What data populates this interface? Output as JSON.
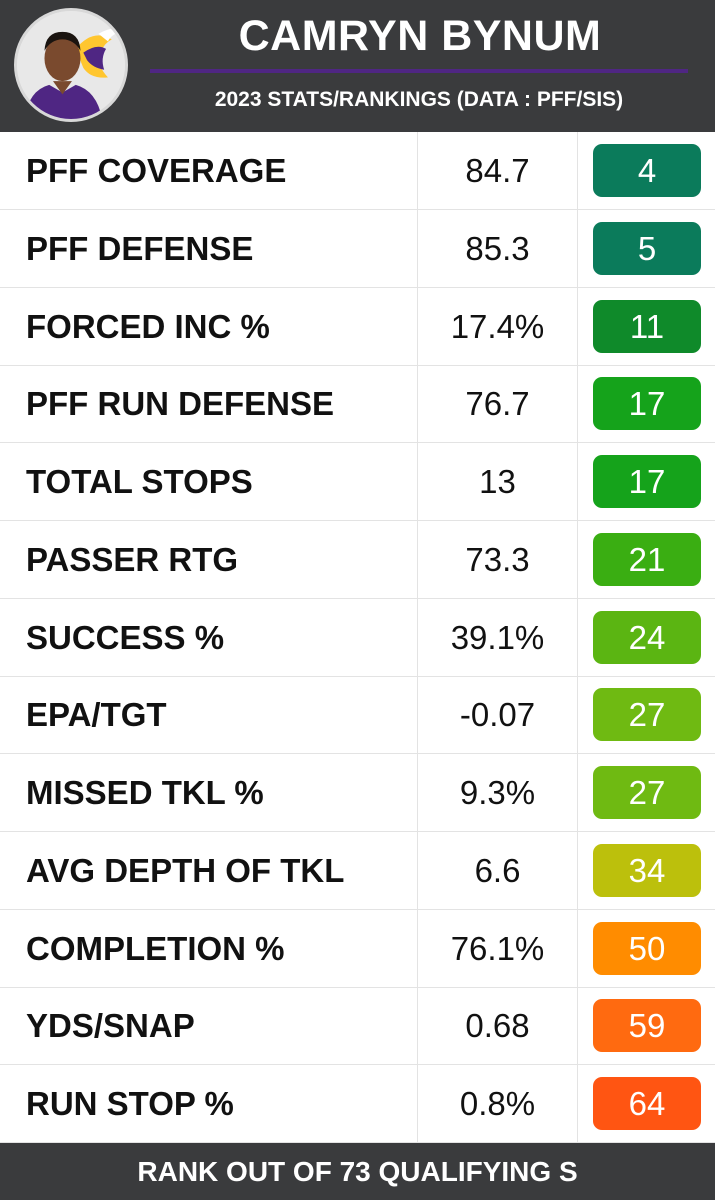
{
  "header": {
    "player_name": "CAMRYN BYNUM",
    "subtitle": "2023 STATS/RANKINGS (DATA : PFF/SIS)",
    "avatar_icon": "player-headshot-icon",
    "team_logo_icon": "viking-logo-icon"
  },
  "rows": [
    {
      "stat": "PFF COVERAGE",
      "value": "84.7",
      "rank": "4",
      "color": "#0b7b5b"
    },
    {
      "stat": "PFF DEFENSE",
      "value": "85.3",
      "rank": "5",
      "color": "#0b7b5b"
    },
    {
      "stat": "FORCED INC %",
      "value": "17.4%",
      "rank": "11",
      "color": "#0f8a2a"
    },
    {
      "stat": "PFF RUN DEFENSE",
      "value": "76.7",
      "rank": "17",
      "color": "#15a31b"
    },
    {
      "stat": "TOTAL STOPS",
      "value": "13",
      "rank": "17",
      "color": "#15a31b"
    },
    {
      "stat": "PASSER RTG",
      "value": "73.3",
      "rank": "21",
      "color": "#3aae12"
    },
    {
      "stat": "SUCCESS %",
      "value": "39.1%",
      "rank": "24",
      "color": "#5bb512"
    },
    {
      "stat": "EPA/TGT",
      "value": "-0.07",
      "rank": "27",
      "color": "#6fba12"
    },
    {
      "stat": "MISSED TKL %",
      "value": "9.3%",
      "rank": "27",
      "color": "#6fba12"
    },
    {
      "stat": "AVG DEPTH OF TKL",
      "value": "6.6",
      "rank": "34",
      "color": "#bcc00c"
    },
    {
      "stat": "COMPLETION %",
      "value": "76.1%",
      "rank": "50",
      "color": "#ff8c00"
    },
    {
      "stat": "YDS/SNAP",
      "value": "0.68",
      "rank": "59",
      "color": "#ff6a10"
    },
    {
      "stat": "RUN STOP %",
      "value": "0.8%",
      "rank": "64",
      "color": "#ff5512"
    }
  ],
  "footer": {
    "note": "RANK OUT OF 73 QUALIFYING S"
  }
}
